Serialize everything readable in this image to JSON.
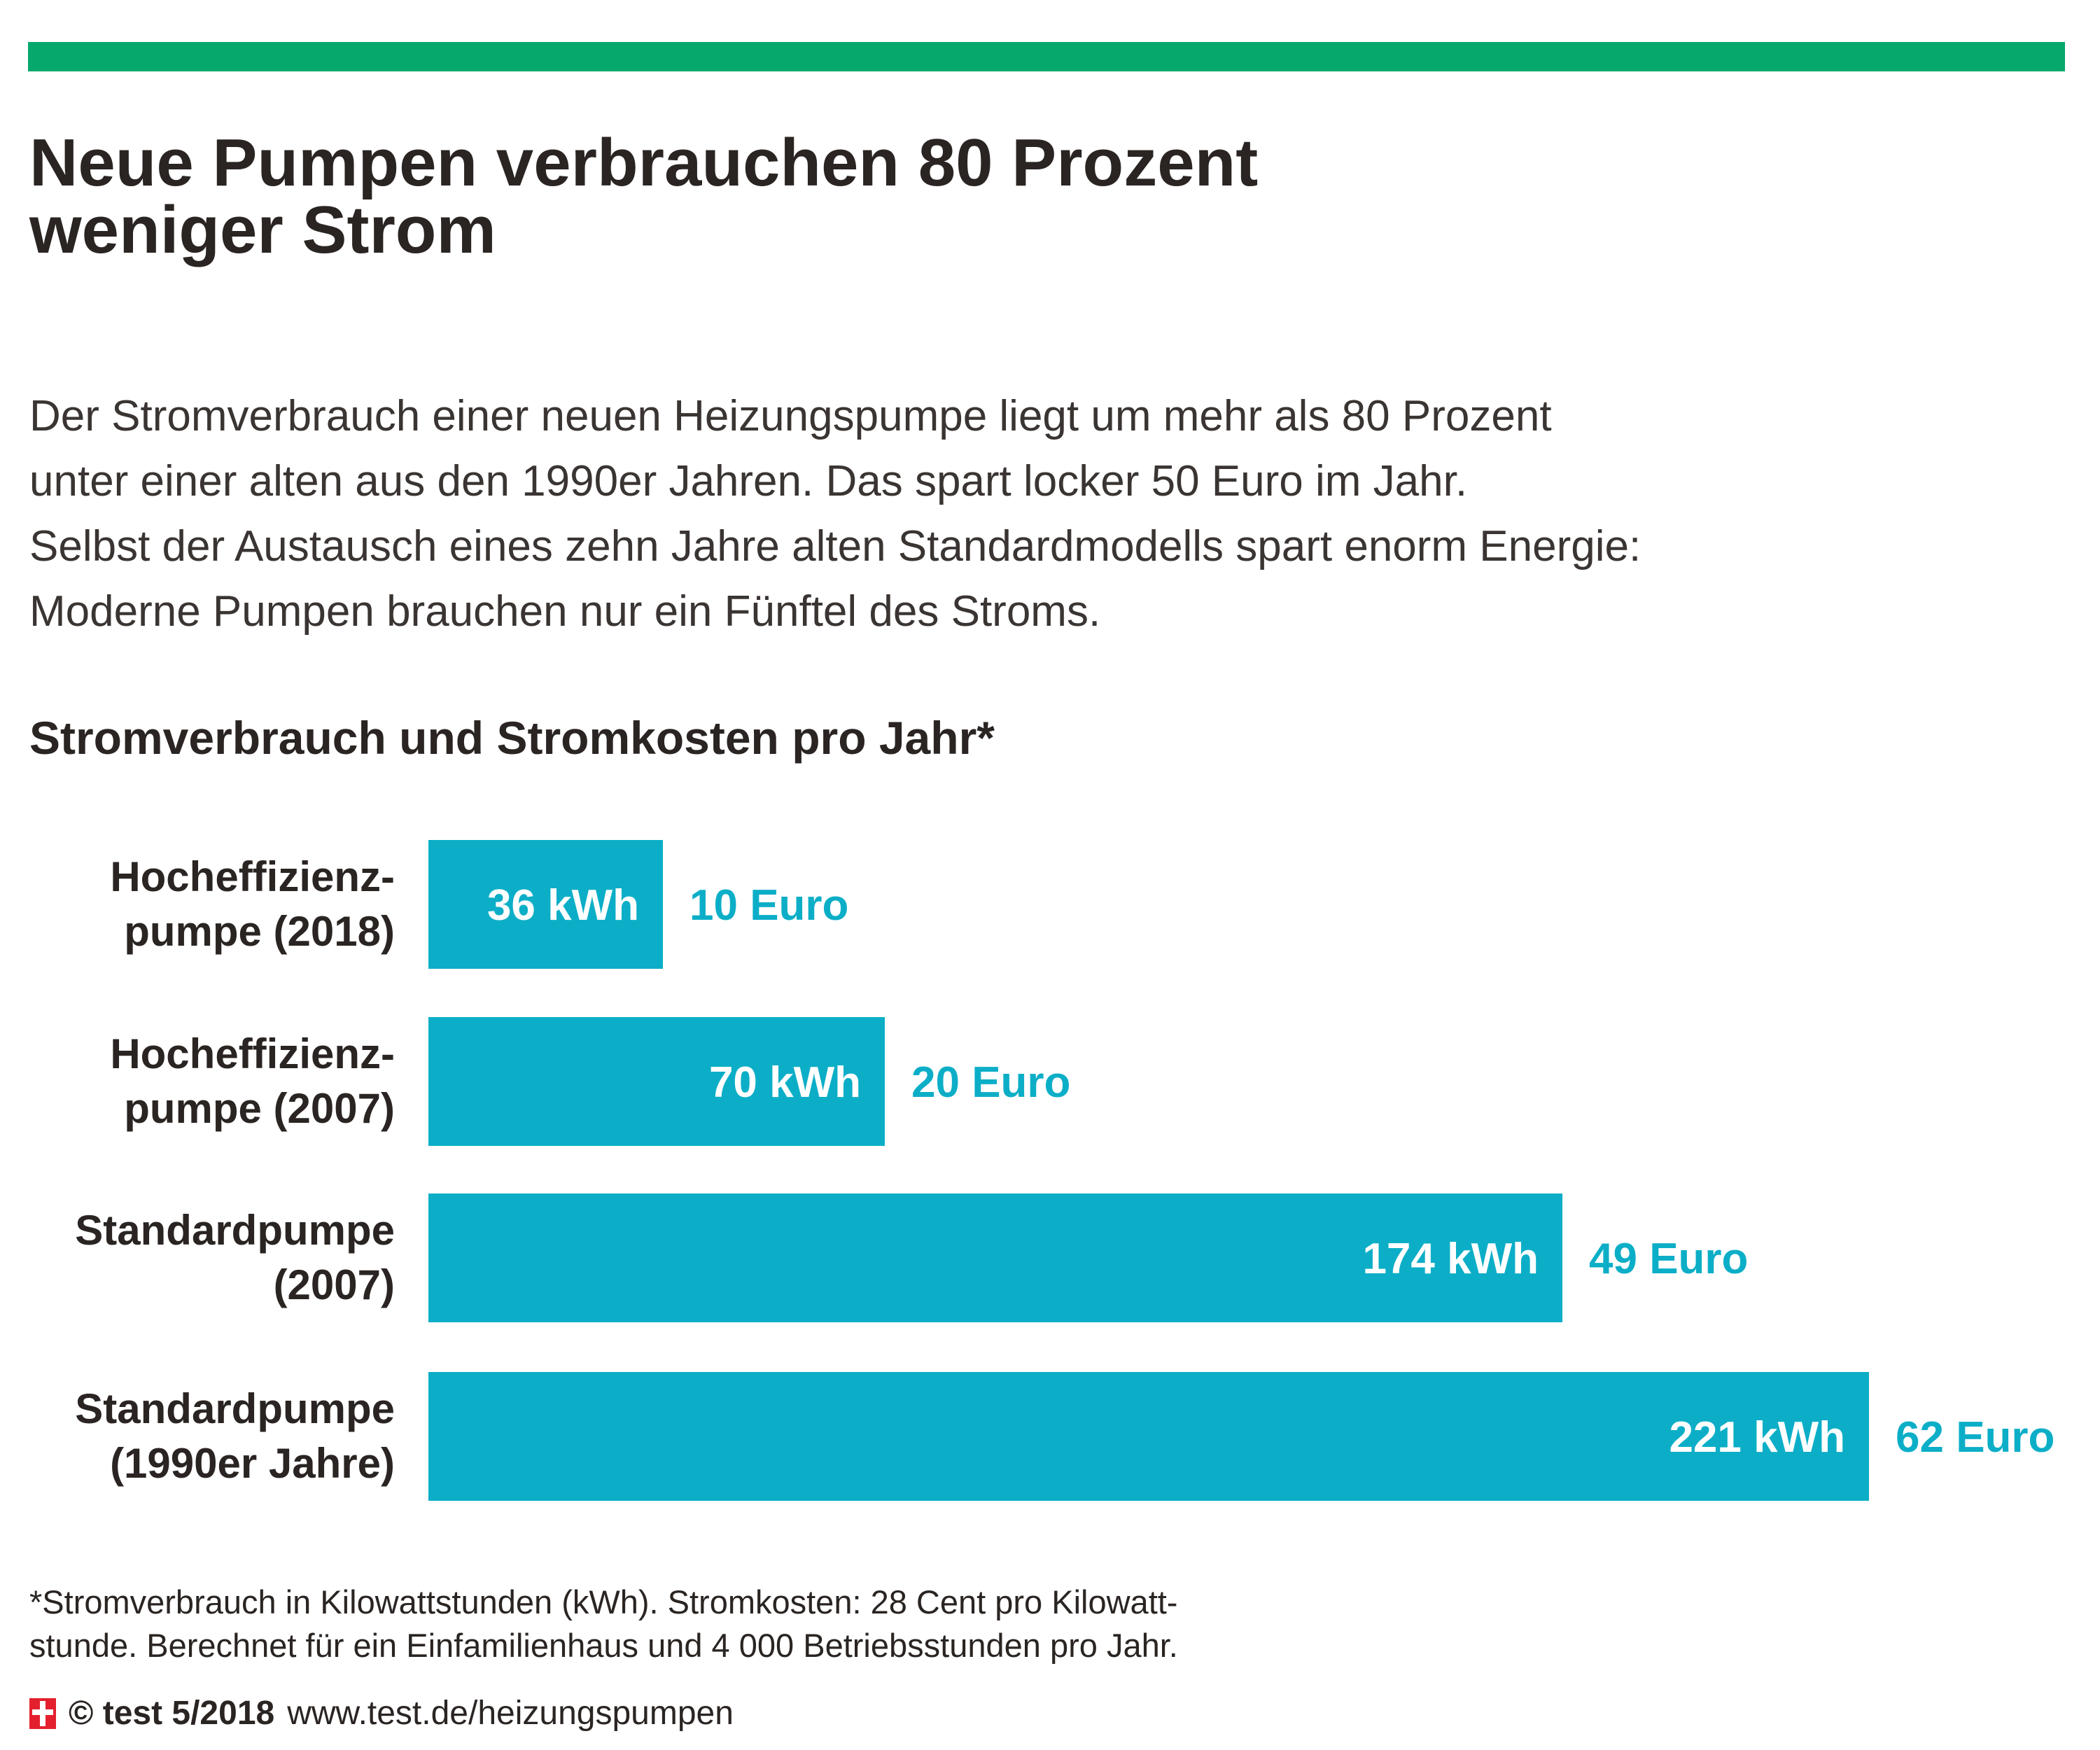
{
  "colors": {
    "accent_rule": "#07a86b",
    "bar": "#0caec7",
    "cost_text": "#0caec7",
    "bar_label_text": "#ffffff",
    "text": "#2a2522",
    "logo": "#e4202e"
  },
  "headline": {
    "line1": "Neue Pumpen verbrauchen 80 Prozent",
    "line2": "weniger Strom"
  },
  "lead": {
    "line1": "Der Stromverbrauch einer neuen Heizungspumpe liegt um mehr als 80 Prozent",
    "line2": "unter einer alten aus den 1990er Jahren. Das spart locker 50 Euro im Jahr.",
    "line3": "Selbst der Austausch eines zehn Jahre alten Standardmodells spart enorm Energie:",
    "line4": "Moderne Pumpen brauchen nur ein Fünftel des Stroms."
  },
  "chart_data": {
    "type": "bar",
    "orientation": "horizontal",
    "title": "Stromverbrauch und Stromkosten pro Jahr*",
    "categories": [
      [
        "Hocheffizienz-",
        "pumpe (2018)"
      ],
      [
        "Hocheffizienz-",
        "pumpe (2007)"
      ],
      [
        "Standardpumpe",
        "(2007)"
      ],
      [
        "Standardpumpe",
        "(1990er Jahre)"
      ]
    ],
    "values": [
      36,
      70,
      174,
      221
    ],
    "value_labels": [
      "36 kWh",
      "70 kWh",
      "174 kWh",
      "221 kWh"
    ],
    "cost_labels": [
      "10 Euro",
      "20 Euro",
      "49 Euro",
      "62 Euro"
    ],
    "costs": [
      10,
      20,
      49,
      62
    ],
    "unit": "kWh",
    "xlim": [
      0,
      221
    ],
    "grid": false,
    "legend": "none"
  },
  "footnote": {
    "line1": "*Stromverbrauch in Kilowattstunden (kWh). Stromkosten: 28 Cent pro Kilowatt-",
    "line2": "stunde. Berechnet für ein Einfamilienhaus und 4 000 Betriebsstunden pro Jahr."
  },
  "source": {
    "logo_icon": "test-cross-logo",
    "copyright": "© test 5/2018",
    "url": "www.test.de/heizungspumpen"
  }
}
